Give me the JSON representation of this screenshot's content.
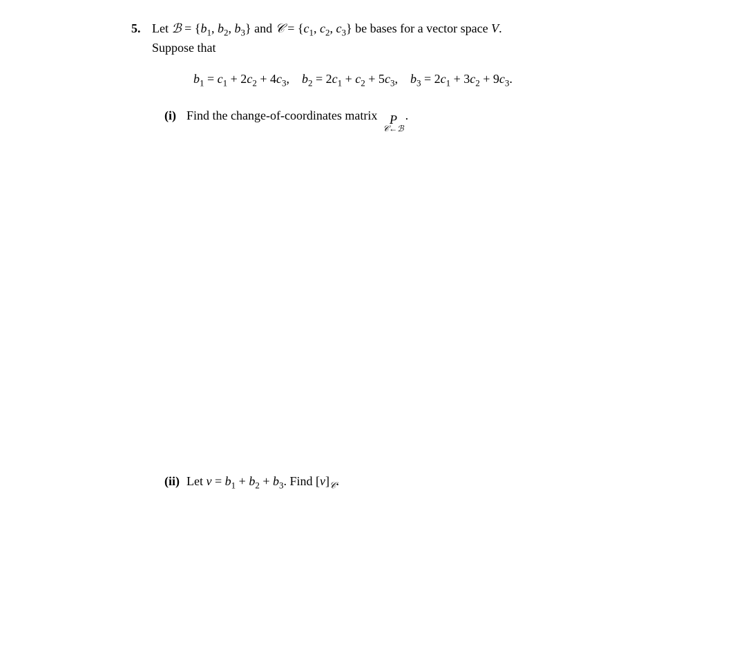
{
  "problem": {
    "number": "5.",
    "intro_part1": "Let ",
    "basis_b": "ℬ",
    "eq1": " = {",
    "b1": "b",
    "b1_sub": "1",
    "comma1": ", ",
    "b2": "b",
    "b2_sub": "2",
    "comma2": ", ",
    "b3": "b",
    "b3_sub": "3",
    "close1": "} and ",
    "basis_c": "𝒞",
    "eq2": " = {",
    "c1": "c",
    "c1_sub": "1",
    "comma3": ", ",
    "c2": "c",
    "c2_sub": "2",
    "comma4": ", ",
    "c3": "c",
    "c3_sub": "3",
    "close2": "} be bases for a vector space ",
    "v": "V",
    "period1": ".",
    "suppose": "Suppose that"
  },
  "equations": {
    "eq1_lhs_b": "b",
    "eq1_lhs_sub": "1",
    "eq1_eq": " = ",
    "eq1_c1": "c",
    "eq1_c1_sub": "1",
    "eq1_plus1": " + 2",
    "eq1_c2": "c",
    "eq1_c2_sub": "2",
    "eq1_plus2": " + 4",
    "eq1_c3": "c",
    "eq1_c3_sub": "3",
    "sep1": ",    ",
    "eq2_lhs_b": "b",
    "eq2_lhs_sub": "2",
    "eq2_eq": " = 2",
    "eq2_c1": "c",
    "eq2_c1_sub": "1",
    "eq2_plus1": " + ",
    "eq2_c2": "c",
    "eq2_c2_sub": "2",
    "eq2_plus2": " + 5",
    "eq2_c3": "c",
    "eq2_c3_sub": "3",
    "sep2": ",    ",
    "eq3_lhs_b": "b",
    "eq3_lhs_sub": "3",
    "eq3_eq": " = 2",
    "eq3_c1": "c",
    "eq3_c1_sub": "1",
    "eq3_plus1": " + 3",
    "eq3_c2": "c",
    "eq3_c2_sub": "2",
    "eq3_plus2": " + 9",
    "eq3_c3": "c",
    "eq3_c3_sub": "3",
    "period": "."
  },
  "part_i": {
    "label": "(i)",
    "text": "Find the change-of-coordinates matrix",
    "p": "P",
    "sub_c": "𝒞",
    "sub_arrow": "←",
    "sub_b": "ℬ",
    "period": "."
  },
  "part_ii": {
    "label": "(ii)",
    "text1": "Let ",
    "v": "v",
    "eq": " = ",
    "b1": "b",
    "b1_sub": "1",
    "plus1": " + ",
    "b2": "b",
    "b2_sub": "2",
    "plus2": " + ",
    "b3": "b",
    "b3_sub": "3",
    "period1": ". Find [",
    "v2": "v",
    "bracket": "]",
    "sub_c": "𝒞",
    "period2": "."
  }
}
